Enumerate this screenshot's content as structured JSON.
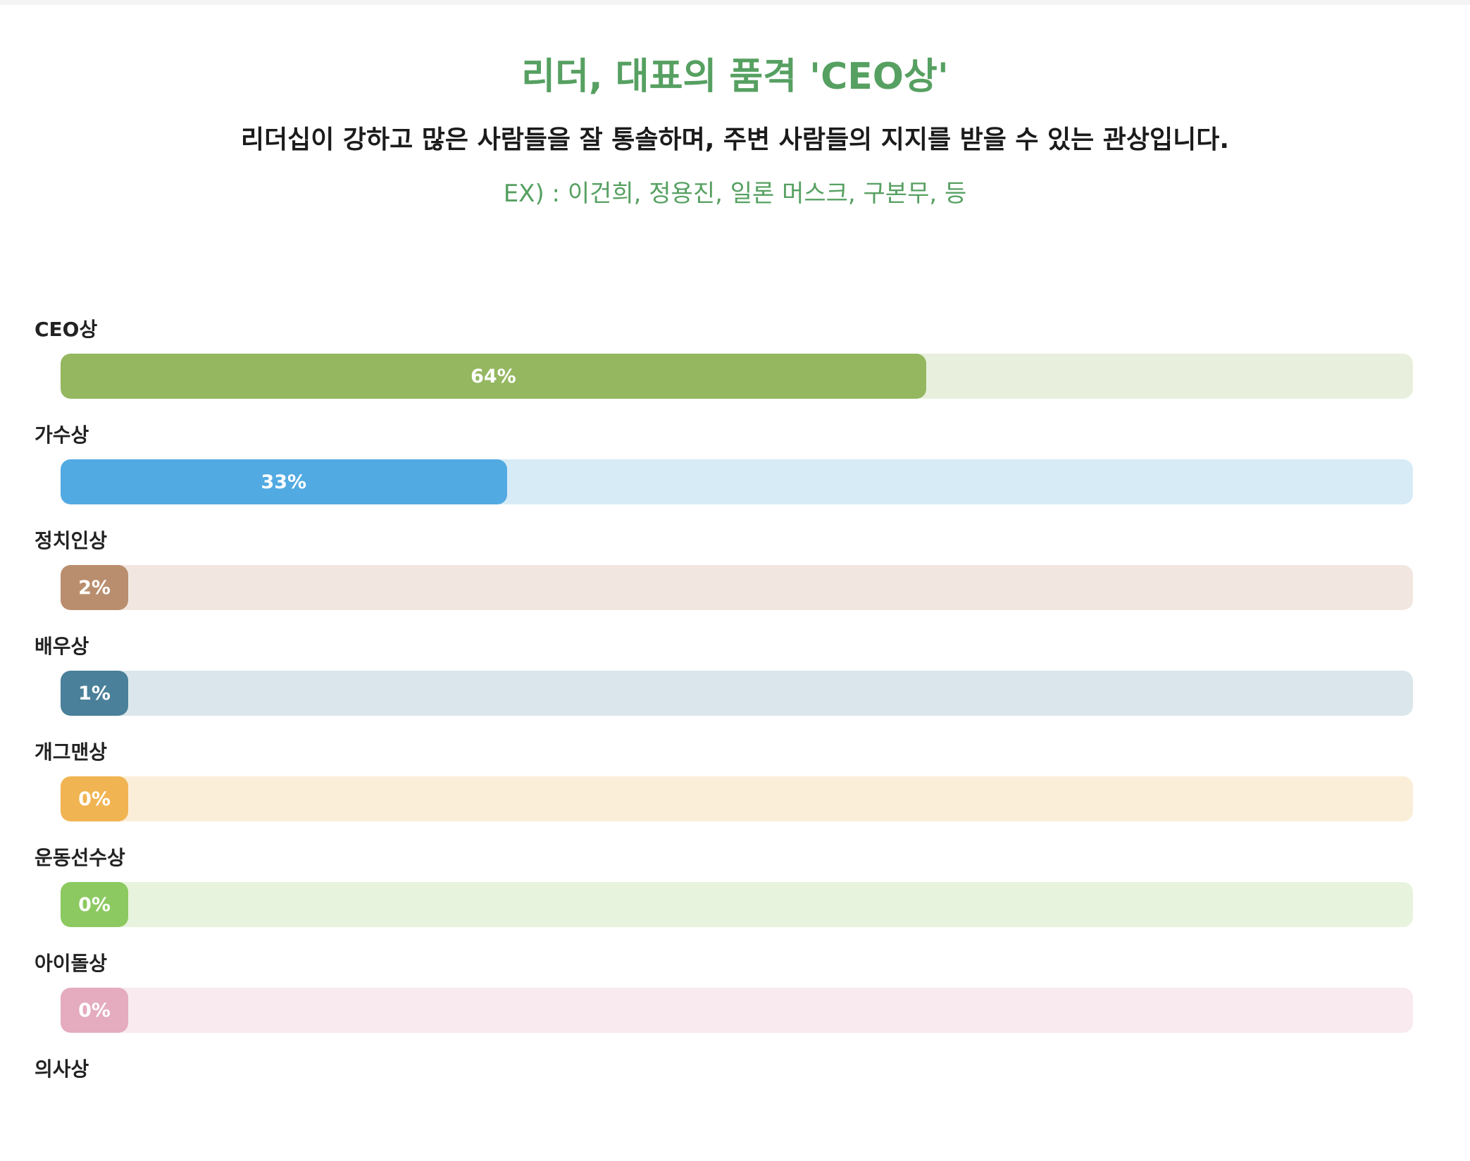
{
  "header": {
    "title": "리더, 대표의 품격 'CEO상'",
    "description": "리더십이 강하고 많은 사람들을 잘 통솔하며, 주변 사람들의 지지를 받을 수 있는 관상입니다.",
    "example": "EX) : 이건희, 정용진, 일론 머스크, 구본무, 등"
  },
  "results": [
    {
      "label": "CEO상",
      "percent_text": "64%",
      "value": 0.64,
      "color": "#94b760",
      "track_color": "#e8f0dd"
    },
    {
      "label": "가수상",
      "percent_text": "33%",
      "value": 0.33,
      "color": "#52aae2",
      "track_color": "#d7ebf7"
    },
    {
      "label": "정치인상",
      "percent_text": "2%",
      "value": 0.02,
      "color": "#b98e6e",
      "track_color": "#f1e7e0"
    },
    {
      "label": "배우상",
      "percent_text": "1%",
      "value": 0.01,
      "color": "#4a8099",
      "track_color": "#dae6ec"
    },
    {
      "label": "개그맨상",
      "percent_text": "0%",
      "value": 0.0,
      "color": "#f1b452",
      "track_color": "#fbeed8"
    },
    {
      "label": "운동선수상",
      "percent_text": "0%",
      "value": 0.0,
      "color": "#8cc961",
      "track_color": "#e7f3dd"
    },
    {
      "label": "아이돌상",
      "percent_text": "0%",
      "value": 0.0,
      "color": "#e4acbe",
      "track_color": "#f8eaef"
    },
    {
      "label": "의사상",
      "percent_text": "",
      "value": 0.0,
      "color": "#cccccc",
      "track_color": "#eeeeee"
    }
  ]
}
